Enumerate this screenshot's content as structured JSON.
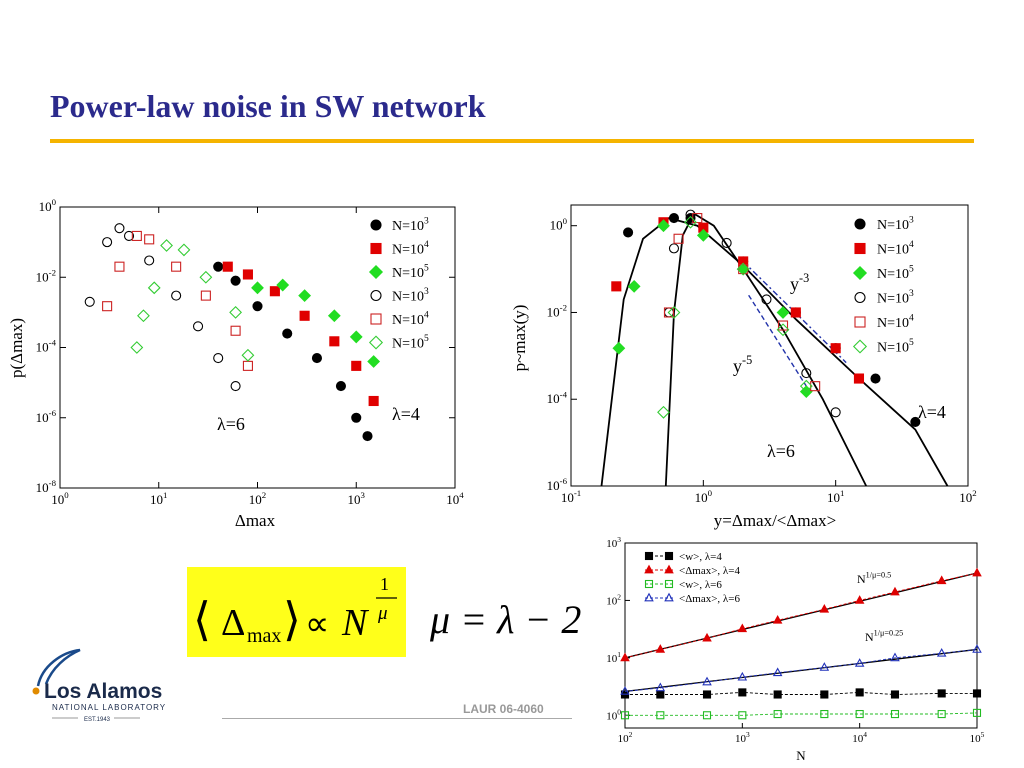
{
  "slide": {
    "title": "Power-law noise in SW network",
    "footer": "LAUR 06-4060",
    "logo": {
      "name": "Los Alamos",
      "line2": "NATIONAL LABORATORY",
      "line3": "EST.1943"
    },
    "formula": {
      "lhs": "Δ",
      "sub": "max",
      "prop": "∝",
      "base": "N",
      "exp_num": "1",
      "exp_den": "μ"
    },
    "mu_relation": "μ = λ − 2"
  },
  "chart_data": [
    {
      "type": "scatter",
      "id": "left",
      "xscale": "log",
      "yscale": "log",
      "xlim": [
        1,
        10000
      ],
      "ylim": [
        1e-08,
        1
      ],
      "xlabel": "Δmax",
      "ylabel": "p(Δmax)",
      "xticks": [
        "10^0",
        "10^1",
        "10^2",
        "10^3",
        "10^4"
      ],
      "yticks": [
        "10^-8",
        "10^-6",
        "10^-4",
        "10^-2",
        "10^0"
      ],
      "annotations": [
        "λ=6",
        "λ=4"
      ],
      "legend_position": "top-right",
      "series": [
        {
          "name": "N=10^3",
          "marker": "circle-filled",
          "color": "#000000",
          "points": [
            [
              40,
              0.02
            ],
            [
              60,
              0.008
            ],
            [
              100,
              0.0015
            ],
            [
              200,
              0.00025
            ],
            [
              400,
              5e-05
            ],
            [
              700,
              8e-06
            ],
            [
              1000,
              1e-06
            ],
            [
              1300,
              3e-07
            ]
          ]
        },
        {
          "name": "N=10^4",
          "marker": "square-filled",
          "color": "#e00000",
          "points": [
            [
              50,
              0.02
            ],
            [
              80,
              0.012
            ],
            [
              150,
              0.004
            ],
            [
              300,
              0.0008
            ],
            [
              600,
              0.00015
            ],
            [
              1000,
              3e-05
            ],
            [
              1500,
              3e-06
            ]
          ]
        },
        {
          "name": "N=10^5",
          "marker": "diamond-filled",
          "color": "#22dd22",
          "points": [
            [
              100,
              0.005
            ],
            [
              180,
              0.006
            ],
            [
              300,
              0.003
            ],
            [
              600,
              0.0008
            ],
            [
              1000,
              0.0002
            ],
            [
              1500,
              4e-05
            ]
          ]
        },
        {
          "name": "N=10^3",
          "marker": "circle-open",
          "color": "#000000",
          "points": [
            [
              2,
              0.002
            ],
            [
              3,
              0.1
            ],
            [
              4,
              0.25
            ],
            [
              5,
              0.15
            ],
            [
              8,
              0.03
            ],
            [
              15,
              0.003
            ],
            [
              25,
              0.0004
            ],
            [
              40,
              5e-05
            ],
            [
              60,
              8e-06
            ]
          ]
        },
        {
          "name": "N=10^4",
          "marker": "square-open",
          "color": "#cc2222",
          "points": [
            [
              3,
              0.0015
            ],
            [
              4,
              0.02
            ],
            [
              6,
              0.15
            ],
            [
              8,
              0.12
            ],
            [
              15,
              0.02
            ],
            [
              30,
              0.003
            ],
            [
              60,
              0.0003
            ],
            [
              80,
              3e-05
            ]
          ]
        },
        {
          "name": "N=10^5",
          "marker": "diamond-open",
          "color": "#33cc33",
          "points": [
            [
              6,
              0.0001
            ],
            [
              7,
              0.0008
            ],
            [
              9,
              0.005
            ],
            [
              12,
              0.08
            ],
            [
              18,
              0.06
            ],
            [
              30,
              0.01
            ],
            [
              60,
              0.001
            ],
            [
              80,
              6e-05
            ]
          ]
        }
      ]
    },
    {
      "type": "scatter",
      "id": "right",
      "xscale": "log",
      "yscale": "log",
      "xlim": [
        0.1,
        100
      ],
      "ylim": [
        1e-06,
        3
      ],
      "xlabel": "y=Δmax/<Δmax>",
      "ylabel": "p~max(y)",
      "xticks": [
        "10^-1",
        "10^0",
        "10^1",
        "10^2"
      ],
      "yticks": [
        "10^-6",
        "10^-4",
        "10^-2",
        "10^0"
      ],
      "annotations": [
        "y^-3",
        "y^-5",
        "λ=6",
        "λ=4"
      ],
      "legend_position": "top-right",
      "series": [
        {
          "name": "N=10^3",
          "marker": "circle-filled",
          "color": "#000000",
          "points": [
            [
              0.27,
              0.7
            ],
            [
              0.6,
              1.5
            ],
            [
              0.8,
              1.5
            ],
            [
              2,
              0.15
            ],
            [
              5,
              0.01
            ],
            [
              10,
              0.0015
            ],
            [
              20,
              0.0003
            ],
            [
              40,
              3e-05
            ]
          ]
        },
        {
          "name": "N=10^4",
          "marker": "square-filled",
          "color": "#e00000",
          "points": [
            [
              0.22,
              0.04
            ],
            [
              0.5,
              1.2
            ],
            [
              1,
              0.9
            ],
            [
              2,
              0.15
            ],
            [
              5,
              0.01
            ],
            [
              10,
              0.0015
            ],
            [
              15,
              0.0003
            ]
          ]
        },
        {
          "name": "N=10^5",
          "marker": "diamond-filled",
          "color": "#22dd22",
          "points": [
            [
              0.23,
              0.0015
            ],
            [
              0.3,
              0.04
            ],
            [
              0.5,
              1
            ],
            [
              1,
              0.6
            ],
            [
              2,
              0.1
            ],
            [
              4,
              0.01
            ],
            [
              6,
              0.00015
            ]
          ]
        },
        {
          "name": "N=10^3",
          "marker": "circle-open",
          "color": "#000000",
          "points": [
            [
              0.55,
              0.01
            ],
            [
              0.6,
              0.3
            ],
            [
              0.8,
              1.8
            ],
            [
              1.5,
              0.4
            ],
            [
              3,
              0.02
            ],
            [
              6,
              0.0004
            ],
            [
              10,
              5e-05
            ]
          ]
        },
        {
          "name": "N=10^4",
          "marker": "square-open",
          "color": "#cc2222",
          "points": [
            [
              0.55,
              0.01
            ],
            [
              0.65,
              0.5
            ],
            [
              0.9,
              1.5
            ],
            [
              2,
              0.1
            ],
            [
              4,
              0.005
            ],
            [
              7,
              0.0002
            ]
          ]
        },
        {
          "name": "N=10^5",
          "marker": "diamond-open",
          "color": "#33cc33",
          "points": [
            [
              0.5,
              5e-05
            ],
            [
              0.6,
              0.01
            ],
            [
              0.8,
              1.2
            ],
            [
              2,
              0.1
            ],
            [
              4,
              0.004
            ],
            [
              6,
              0.0002
            ]
          ]
        }
      ]
    },
    {
      "type": "line",
      "id": "bottom-right",
      "xscale": "log",
      "yscale": "log",
      "xlim": [
        100,
        100000
      ],
      "ylim": [
        0.6,
        1000
      ],
      "xlabel": "N",
      "ylabel": "",
      "xticks": [
        "10^2",
        "10^3",
        "10^4",
        "10^5"
      ],
      "yticks": [
        "10^0",
        "10^1",
        "10^2",
        "10^3"
      ],
      "annotations": [
        "N^1/μ=0.5",
        "N^1/μ=0.25"
      ],
      "legend_position": "top-left",
      "series": [
        {
          "name": "<w>, λ=4",
          "marker": "square-filled",
          "color": "#000000",
          "x": [
            100,
            200,
            500,
            1000,
            2000,
            5000,
            10000,
            20000,
            50000,
            100000
          ],
          "y": [
            2.3,
            2.3,
            2.3,
            2.5,
            2.3,
            2.3,
            2.5,
            2.3,
            2.4,
            2.4
          ]
        },
        {
          "name": "<Δmax>, λ=4",
          "marker": "triangle-filled",
          "color": "#dd0000",
          "x": [
            100,
            200,
            500,
            1000,
            2000,
            5000,
            10000,
            20000,
            50000,
            100000
          ],
          "y": [
            10,
            14,
            22,
            32,
            45,
            70,
            100,
            140,
            220,
            300
          ]
        },
        {
          "name": "<w>, λ=6",
          "marker": "square-open",
          "color": "#22bb22",
          "x": [
            100,
            200,
            500,
            1000,
            2000,
            5000,
            10000,
            20000,
            50000,
            100000
          ],
          "y": [
            1.0,
            1.0,
            1.0,
            1.0,
            1.05,
            1.05,
            1.05,
            1.05,
            1.05,
            1.1
          ]
        },
        {
          "name": "<Δmax>, λ=6",
          "marker": "triangle-open",
          "color": "#2233bb",
          "x": [
            100,
            200,
            500,
            1000,
            2000,
            5000,
            10000,
            20000,
            50000,
            100000
          ],
          "y": [
            2.6,
            3.0,
            3.8,
            4.6,
            5.5,
            6.8,
            8.0,
            10,
            12,
            14
          ]
        }
      ]
    }
  ]
}
